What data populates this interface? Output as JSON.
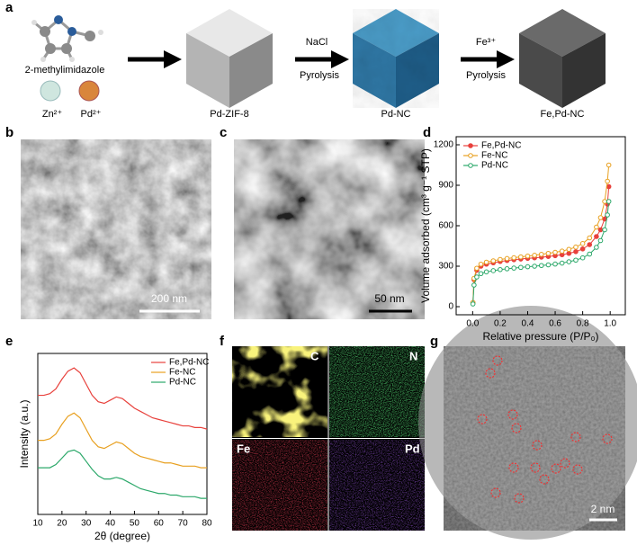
{
  "panel_labels": [
    "a",
    "b",
    "c",
    "d",
    "e",
    "f",
    "g"
  ],
  "scheme": {
    "precursor": "2-methylimidazole",
    "ions": [
      "Zn²⁺",
      "Pd²⁺"
    ],
    "steps": [
      {
        "reagent": "NaCl",
        "process": "Pyrolysis"
      },
      {
        "reagent": "Fe³⁺",
        "process": "Pyrolysis"
      }
    ],
    "products": [
      "Pd-ZIF-8",
      "Pd-NC",
      "Fe,Pd-NC"
    ]
  },
  "sem": {
    "scale_bar": "200 nm"
  },
  "tem": {
    "scale_bar": "50 nm"
  },
  "mapping": {
    "elements": [
      "C",
      "N",
      "Fe",
      "Pd"
    ]
  },
  "haadf": {
    "scale_bar": "2 nm"
  },
  "chart_data": [
    {
      "type": "line",
      "xlabel": "Relative pressure (P/P₀)",
      "ylabel": "Volume adsorbed (cm³ g⁻¹ STP)",
      "markers": true,
      "legend": "upper left",
      "x": [
        0.002,
        0.01,
        0.03,
        0.06,
        0.1,
        0.15,
        0.2,
        0.25,
        0.3,
        0.35,
        0.4,
        0.45,
        0.5,
        0.55,
        0.6,
        0.65,
        0.7,
        0.75,
        0.8,
        0.85,
        0.9,
        0.93,
        0.96,
        0.98,
        0.99
      ],
      "xlim": [
        -0.12,
        1.11
      ],
      "xticks": [
        {
          "value": 0,
          "label": "0.0"
        },
        {
          "value": 0.2,
          "label": "0.2"
        },
        {
          "value": 0.4,
          "label": "0.4"
        },
        {
          "value": 0.6,
          "label": "0.6"
        },
        {
          "value": 0.8,
          "label": "0.8"
        },
        {
          "value": 1,
          "label": "1.0"
        }
      ],
      "ylim": [
        -60,
        1260
      ],
      "yticks": [
        0,
        300,
        600,
        900,
        1200
      ],
      "series": [
        {
          "name": "Fe,Pd-NC",
          "color": "#e8413c",
          "values": [
            30,
            200,
            270,
            300,
            315,
            325,
            335,
            342,
            348,
            353,
            358,
            362,
            367,
            372,
            378,
            385,
            395,
            408,
            428,
            460,
            520,
            570,
            650,
            760,
            890
          ]
        },
        {
          "name": "Fe-NC",
          "color": "#e8a020",
          "values": [
            30,
            210,
            285,
            315,
            330,
            340,
            350,
            357,
            363,
            369,
            375,
            381,
            388,
            395,
            403,
            412,
            425,
            442,
            468,
            510,
            590,
            660,
            780,
            930,
            1050
          ]
        },
        {
          "name": "Pd-NC",
          "color": "#2ca86a",
          "values": [
            20,
            160,
            220,
            245,
            258,
            267,
            275,
            281,
            286,
            291,
            296,
            300,
            305,
            310,
            316,
            323,
            333,
            345,
            362,
            390,
            440,
            490,
            570,
            680,
            780
          ]
        }
      ]
    },
    {
      "type": "line",
      "xlabel": "2θ (degree)",
      "ylabel": "Intensity (a.u.)",
      "markers": false,
      "legend": "upper right",
      "x": [
        10,
        12.5,
        15,
        17.5,
        20,
        22.5,
        25,
        27.5,
        30,
        32.5,
        35,
        37.5,
        40,
        42.5,
        45,
        47.5,
        50,
        52.5,
        55,
        57.5,
        60,
        62.5,
        65,
        67.5,
        70,
        72.5,
        75,
        77.5,
        80
      ],
      "xlim": [
        10,
        80
      ],
      "xticks": [
        10,
        20,
        30,
        40,
        50,
        60,
        70,
        80
      ],
      "ylim": [
        0,
        100
      ],
      "series": [
        {
          "name": "Fe,Pd-NC",
          "color": "#e8413c",
          "values": [
            74,
            74,
            75,
            78,
            84,
            89,
            91,
            88,
            81,
            74,
            70,
            69,
            71,
            73,
            72,
            69,
            66,
            64,
            62,
            60,
            59,
            58,
            57,
            56,
            55,
            55,
            54,
            54,
            53
          ]
        },
        {
          "name": "Fe-NC",
          "color": "#e8a020",
          "values": [
            46,
            46,
            47,
            50,
            56,
            61,
            63,
            60,
            53,
            46,
            42,
            41,
            43,
            45,
            44,
            41,
            38,
            36,
            35,
            34,
            33,
            32,
            32,
            31,
            30,
            30,
            30,
            29,
            29
          ]
        },
        {
          "name": "Pd-NC",
          "color": "#2ca86a",
          "values": [
            29,
            29,
            29,
            31,
            35,
            39,
            40,
            38,
            33,
            28,
            24,
            22,
            22,
            23,
            22,
            20,
            18,
            16,
            15,
            14,
            13,
            13,
            12,
            12,
            11,
            11,
            11,
            10,
            10
          ]
        }
      ]
    }
  ]
}
